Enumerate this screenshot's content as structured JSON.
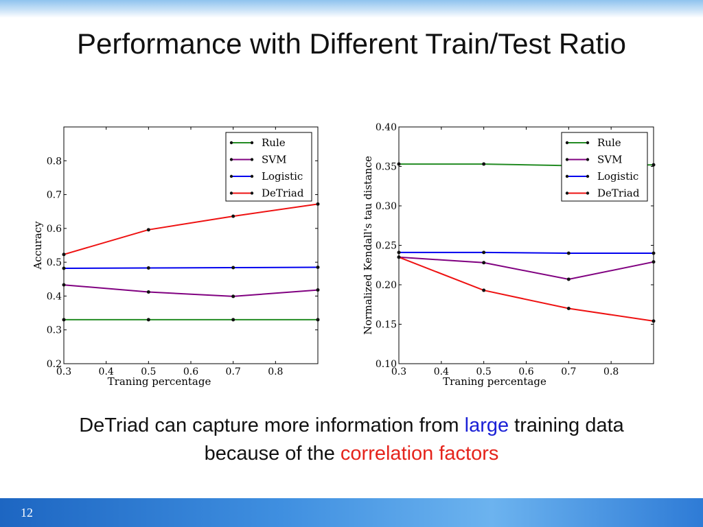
{
  "slide": {
    "title": "Performance with Different Train/Test Ratio",
    "caption_line1_a": "DeTriad can capture more information from ",
    "caption_line1_highlight": "large",
    "caption_line1_b": " training data",
    "caption_line2_a": "because of the ",
    "caption_line2_highlight": "correlation factors",
    "page_number": "12"
  },
  "chart_data": [
    {
      "type": "line",
      "xlabel": "Traning percentage",
      "ylabel": "Accuracy",
      "xlim": [
        0.3,
        0.9
      ],
      "ylim": [
        0.2,
        0.9
      ],
      "xticks": [
        "0.3",
        "0.4",
        "0.5",
        "0.6",
        "0.7",
        "0.8"
      ],
      "yticks": [
        "0.2",
        "0.3",
        "0.4",
        "0.5",
        "0.6",
        "0.7",
        "0.8"
      ],
      "x": [
        0.3,
        0.5,
        0.7,
        0.9
      ],
      "legend_position": "top-right",
      "series": [
        {
          "name": "Rule",
          "color": "#228b22",
          "values": [
            0.33,
            0.33,
            0.33,
            0.33
          ]
        },
        {
          "name": "SVM",
          "color": "#800080",
          "values": [
            0.433,
            0.412,
            0.399,
            0.418
          ]
        },
        {
          "name": "Logistic",
          "color": "#0000ee",
          "values": [
            0.482,
            0.483,
            0.484,
            0.485
          ]
        },
        {
          "name": "DeTriad",
          "color": "#ee1111",
          "values": [
            0.523,
            0.596,
            0.636,
            0.672
          ]
        }
      ]
    },
    {
      "type": "line",
      "xlabel": "Traning percentage",
      "ylabel": "Normalized Kendall's tau distance",
      "xlim": [
        0.3,
        0.9
      ],
      "ylim": [
        0.1,
        0.4
      ],
      "xticks": [
        "0.3",
        "0.4",
        "0.5",
        "0.6",
        "0.7",
        "0.8"
      ],
      "yticks": [
        "0.10",
        "0.15",
        "0.20",
        "0.25",
        "0.30",
        "0.35",
        "0.40"
      ],
      "x": [
        0.3,
        0.5,
        0.7,
        0.9
      ],
      "legend_position": "top-right",
      "series": [
        {
          "name": "Rule",
          "color": "#228b22",
          "values": [
            0.353,
            0.353,
            0.351,
            0.352
          ]
        },
        {
          "name": "SVM",
          "color": "#800080",
          "values": [
            0.235,
            0.228,
            0.207,
            0.229
          ]
        },
        {
          "name": "Logistic",
          "color": "#0000ee",
          "values": [
            0.241,
            0.241,
            0.24,
            0.24
          ]
        },
        {
          "name": "DeTriad",
          "color": "#ee1111",
          "values": [
            0.235,
            0.193,
            0.17,
            0.154
          ]
        }
      ]
    }
  ]
}
